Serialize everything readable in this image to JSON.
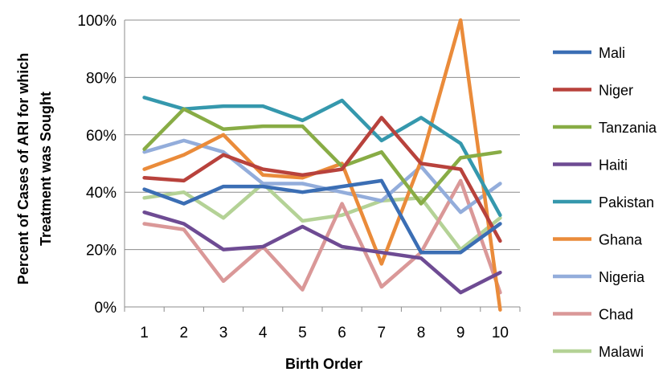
{
  "chart_data": {
    "type": "line",
    "title": "",
    "xlabel": "Birth Order",
    "ylabel_lines": [
      "Percent of Cases of ARI for which",
      "Treatment was Sought"
    ],
    "ylim": [
      0,
      100
    ],
    "yticks": [
      "0%",
      "20%",
      "40%",
      "60%",
      "80%",
      "100%"
    ],
    "categories": [
      "1",
      "2",
      "3",
      "4",
      "5",
      "6",
      "7",
      "8",
      "9",
      "10"
    ],
    "grid": "horizontal",
    "legend_position": "right",
    "series": [
      {
        "name": "Mali",
        "color": "#3B6EB4",
        "values": [
          41,
          36,
          42,
          42,
          40,
          42,
          44,
          19,
          19,
          29
        ]
      },
      {
        "name": "Niger",
        "color": "#B8423C",
        "values": [
          45,
          44,
          53,
          48,
          46,
          48,
          66,
          50,
          48,
          23
        ]
      },
      {
        "name": "Tanzania",
        "color": "#88AC45",
        "values": [
          55,
          69,
          62,
          63,
          63,
          49,
          54,
          36,
          52,
          54
        ]
      },
      {
        "name": "Haiti",
        "color": "#6E4B93",
        "values": [
          33,
          29,
          20,
          21,
          28,
          21,
          19,
          17,
          5,
          12
        ]
      },
      {
        "name": "Pakistan",
        "color": "#3598AD",
        "values": [
          73,
          69,
          70,
          70,
          65,
          72,
          58,
          66,
          57,
          32
        ]
      },
      {
        "name": "Ghana",
        "color": "#EA8B3A",
        "values": [
          48,
          53,
          60,
          46,
          45,
          50,
          15,
          51,
          100,
          -1
        ]
      },
      {
        "name": "Nigeria",
        "color": "#93ADDB",
        "values": [
          54,
          58,
          54,
          43,
          43,
          40,
          37,
          49,
          33,
          43
        ]
      },
      {
        "name": "Chad",
        "color": "#DA9898",
        "values": [
          29,
          27,
          9,
          21,
          6,
          36,
          7,
          19,
          44,
          5
        ]
      },
      {
        "name": "Malawi",
        "color": "#B4D296",
        "values": [
          38,
          40,
          31,
          43,
          30,
          32,
          37,
          38,
          20,
          31
        ]
      }
    ]
  }
}
